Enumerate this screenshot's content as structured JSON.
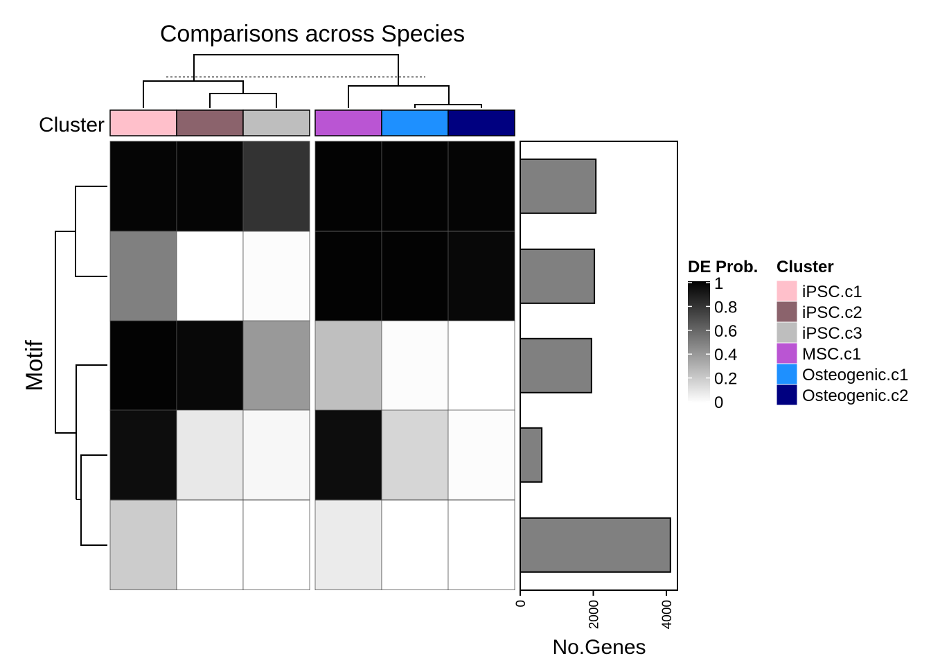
{
  "chart_data": {
    "type": "heatmap",
    "title": "Comparisons across Species",
    "row_axis_label": "Motif",
    "annotation_label": "Cluster",
    "columns": [
      "iPSC.c1",
      "iPSC.c2",
      "iPSC.c3",
      "MSC.c1",
      "Osteogenic.c1",
      "Osteogenic.c2"
    ],
    "column_groups": [
      [
        "iPSC.c1",
        "iPSC.c2",
        "iPSC.c3"
      ],
      [
        "MSC.c1",
        "Osteogenic.c1",
        "Osteogenic.c2"
      ]
    ],
    "column_colors": [
      "#FFC0CB",
      "#8B636C",
      "#BEBEBE",
      "#BA55D3",
      "#1E90FF",
      "#000080"
    ],
    "matrix": [
      [
        0.98,
        0.98,
        0.8,
        0.99,
        0.99,
        0.98
      ],
      [
        0.5,
        0.0,
        0.01,
        0.99,
        0.99,
        0.97
      ],
      [
        0.99,
        0.97,
        0.4,
        0.25,
        0.01,
        0.0
      ],
      [
        0.95,
        0.09,
        0.03,
        0.95,
        0.16,
        0.01
      ],
      [
        0.2,
        0.0,
        0.0,
        0.08,
        0.0,
        0.0
      ]
    ],
    "colorbar": {
      "title": "DE Prob.",
      "ticks": [
        "1",
        "0.8",
        "0.6",
        "0.4",
        "0.2",
        "0"
      ],
      "range": [
        0,
        1
      ],
      "low_color": "#FFFFFF",
      "high_color": "#000000"
    },
    "bar_panel": {
      "type": "bar",
      "orientation": "horizontal",
      "xlabel": "No.Genes",
      "ticks": [
        "0",
        "2000",
        "4000"
      ],
      "xlim": [
        0,
        4300
      ],
      "values": [
        2070,
        2030,
        1950,
        590,
        4110
      ],
      "bar_color": "#808080"
    },
    "legend": {
      "title": "Cluster",
      "items": [
        "iPSC.c1",
        "iPSC.c2",
        "iPSC.c3",
        "MSC.c1",
        "Osteogenic.c1",
        "Osteogenic.c2"
      ]
    },
    "column_dendrogram": true,
    "row_dendrogram": true
  }
}
